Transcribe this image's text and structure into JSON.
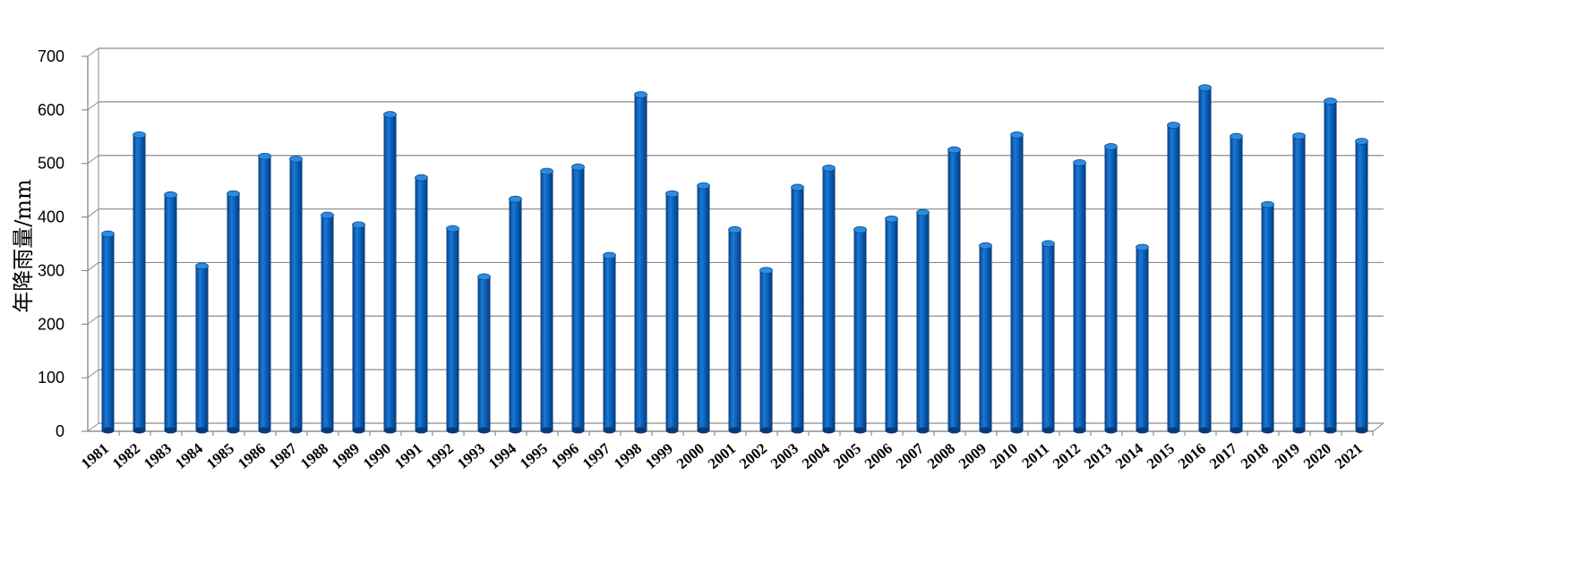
{
  "chart_data": {
    "type": "bar",
    "ylabel": "年降雨量/mm",
    "xlabel": "",
    "title": "",
    "ylim": [
      0,
      700
    ],
    "yticks": [
      0,
      100,
      200,
      300,
      400,
      500,
      600,
      700
    ],
    "grid": true,
    "legend": "none",
    "bar_color": "#0a5fb0",
    "categories": [
      "1981",
      "1982",
      "1983",
      "1984",
      "1985",
      "1986",
      "1987",
      "1988",
      "1989",
      "1990",
      "1991",
      "1992",
      "1993",
      "1994",
      "1995",
      "1996",
      "1997",
      "1998",
      "1999",
      "2000",
      "2001",
      "2002",
      "2003",
      "2004",
      "2005",
      "2006",
      "2007",
      "2008",
      "2009",
      "2010",
      "2011",
      "2012",
      "2013",
      "2014",
      "2015",
      "2016",
      "2017",
      "2018",
      "2019",
      "2020",
      "2021"
    ],
    "values": [
      365,
      550,
      438,
      305,
      440,
      510,
      505,
      400,
      382,
      588,
      470,
      375,
      285,
      430,
      482,
      490,
      325,
      625,
      440,
      455,
      373,
      297,
      452,
      488,
      373,
      393,
      405,
      522,
      343,
      550,
      347,
      498,
      528,
      340,
      568,
      638,
      547,
      420,
      548,
      613,
      538
    ]
  }
}
